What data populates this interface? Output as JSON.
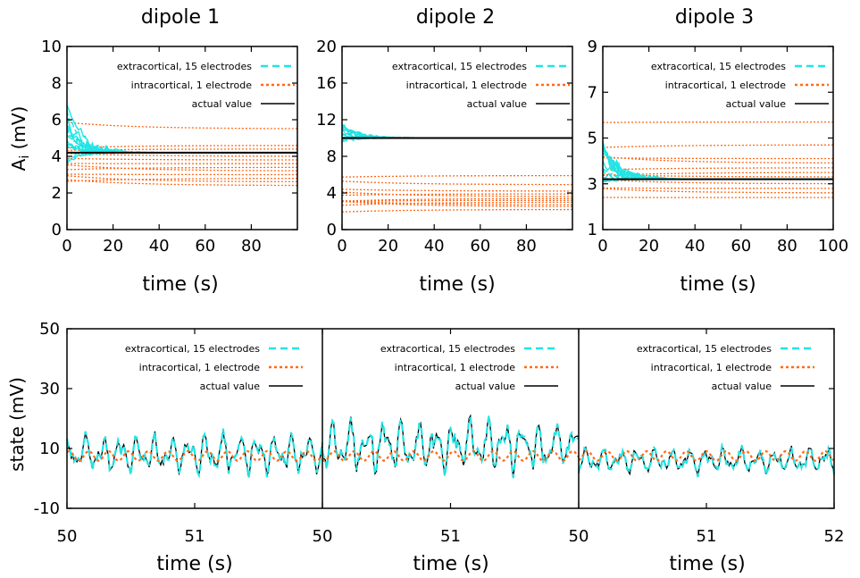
{
  "colors": {
    "extra": "#22e4e4",
    "intra": "#ff6a1a",
    "actual": "#000000",
    "axis": "#000000"
  },
  "legend": {
    "extra": "extracortical, 15 electrodes",
    "intra": "intracortical, 1 electrode",
    "actual": "actual value"
  },
  "ylabels": {
    "top": "A",
    "top_sub": "i",
    "top_unit": " (mV)",
    "bottom": "state (mV)"
  },
  "chart_data": [
    {
      "type": "line",
      "title": "dipole 1",
      "xlabel": "time (s)",
      "xlim": [
        0,
        100
      ],
      "ylim": [
        0,
        10
      ],
      "xticks": [
        "0",
        "20",
        "40",
        "60",
        "80"
      ],
      "yticks": [
        "0",
        "2",
        "4",
        "6",
        "8",
        "10"
      ],
      "actual_value": 4.2,
      "extra_start_range": [
        3.6,
        6.8
      ],
      "intra_finals": [
        2.4,
        2.6,
        2.8,
        3.0,
        3.2,
        3.4,
        3.6,
        3.8,
        4.0,
        4.4,
        4.6,
        5.5
      ]
    },
    {
      "type": "line",
      "title": "dipole 2",
      "xlabel": "time (s)",
      "xlim": [
        0,
        100
      ],
      "ylim": [
        0,
        20
      ],
      "xticks": [
        "0",
        "20",
        "40",
        "60",
        "80"
      ],
      "yticks": [
        "0",
        "4",
        "8",
        "12",
        "16",
        "20"
      ],
      "actual_value": 10,
      "extra_start_range": [
        9.4,
        11.6
      ],
      "intra_finals": [
        2.2,
        2.5,
        2.7,
        3.0,
        3.2,
        3.4,
        3.6,
        3.9,
        4.2,
        4.9,
        5.9
      ]
    },
    {
      "type": "line",
      "title": "dipole 3",
      "xlabel": "time (s)",
      "xlim": [
        0,
        100
      ],
      "ylim": [
        1,
        9
      ],
      "xticks": [
        "0",
        "20",
        "40",
        "60",
        "80",
        "100"
      ],
      "yticks": [
        "1",
        "3",
        "5",
        "7",
        "9"
      ],
      "actual_value": 3.2,
      "extra_start_range": [
        2.9,
        4.9
      ],
      "intra_finals": [
        2.4,
        2.6,
        2.8,
        3.0,
        3.3,
        3.5,
        3.7,
        3.9,
        4.1,
        4.7,
        5.7
      ]
    },
    {
      "type": "line",
      "title": "",
      "ylabel": "state (mV)",
      "xlim_segments": [
        [
          50,
          51.99
        ],
        [
          50,
          51.99
        ],
        [
          50,
          52
        ]
      ],
      "ylim": [
        -10,
        50
      ],
      "yticks": [
        "-10",
        "10",
        "30",
        "50"
      ],
      "xtick_labels": [
        "50",
        "51",
        "50",
        "51",
        "50",
        "51",
        "52"
      ],
      "xlabels": [
        "time (s)",
        "time (s)",
        "time (s)"
      ],
      "segments": [
        {
          "mean": 8,
          "amp": 7,
          "intra_mean": 7.5
        },
        {
          "mean": 11,
          "amp": 9.5,
          "intra_mean": 7.5
        },
        {
          "mean": 6,
          "amp": 4.5,
          "intra_mean": 7.5
        }
      ]
    }
  ]
}
